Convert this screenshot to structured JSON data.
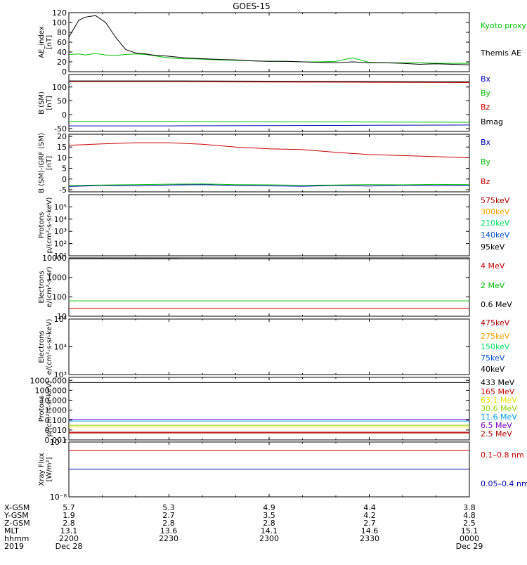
{
  "title": "GOES-15",
  "colors": {
    "black": "#000000",
    "green": "#00c000",
    "lightgreen": "#00e060",
    "blue": "#0000b4",
    "red": "#c80000",
    "darkred": "#aa0000",
    "orange": "#f0a000",
    "yellow": "#e6e600",
    "cyan": "#00a0e6",
    "purple": "#7800c8",
    "bluelight": "#0050d0",
    "olive": "#90d000"
  },
  "chart_data": [
    {
      "type": "line",
      "id": "ae",
      "ylabel": [
        "AE_index",
        "[nT]"
      ],
      "yscale": "linear",
      "ylim": [
        0,
        120
      ],
      "yticks": [
        0,
        20,
        40,
        60,
        80,
        100,
        120
      ],
      "x": [
        0,
        3,
        5,
        8,
        11,
        14,
        17,
        20,
        23,
        26,
        29,
        32,
        35,
        38,
        41,
        45,
        50,
        55,
        60,
        65,
        70,
        75,
        80,
        85,
        90,
        95,
        100,
        105,
        110,
        115,
        120
      ],
      "series": [
        {
          "name": "Kyoto proxy AE",
          "color": "green",
          "values": [
            35,
            36,
            34,
            37,
            34,
            33,
            35,
            36,
            35,
            32,
            29,
            27,
            26,
            26,
            25,
            24,
            23,
            22,
            21,
            21,
            20,
            20,
            21,
            28,
            19,
            18,
            18,
            18,
            17,
            17,
            17
          ]
        },
        {
          "name": "Themis AE",
          "color": "black",
          "values": [
            70,
            105,
            111,
            114,
            100,
            70,
            45,
            38,
            36,
            33,
            32,
            30,
            28,
            27,
            26,
            25,
            24,
            22,
            21,
            21,
            20,
            19,
            18,
            20,
            18,
            18,
            17,
            15,
            16,
            15,
            14
          ]
        }
      ]
    },
    {
      "type": "line",
      "id": "bsm",
      "ylabel": [
        "B (SM)",
        "[nT]"
      ],
      "yscale": "linear",
      "ylim": [
        -60,
        145
      ],
      "yticks": [
        -50,
        0,
        50,
        100
      ],
      "x": [
        0,
        30,
        60,
        90,
        120
      ],
      "series": [
        {
          "name": "Bx",
          "color": "blue",
          "values": [
            -40,
            -40,
            -39,
            -38,
            -37
          ]
        },
        {
          "name": "By",
          "color": "green",
          "values": [
            -24,
            -24,
            -25,
            -26,
            -27
          ]
        },
        {
          "name": "Bz",
          "color": "red",
          "values": [
            119,
            119,
            118,
            117,
            116
          ]
        },
        {
          "name": "Bmag",
          "color": "black",
          "values": [
            122,
            122,
            121,
            120,
            119
          ]
        }
      ]
    },
    {
      "type": "line",
      "id": "bigrf",
      "ylabel": [
        "B (SM)-IGRF (SM)",
        "[nT]"
      ],
      "yscale": "linear",
      "ylim": [
        -6,
        21
      ],
      "yticks": [
        -5,
        0,
        5,
        10,
        15,
        20
      ],
      "x": [
        0,
        10,
        20,
        30,
        40,
        50,
        60,
        70,
        80,
        90,
        100,
        110,
        120
      ],
      "series": [
        {
          "name": "Bx",
          "color": "blue",
          "values": [
            -3.5,
            -3.0,
            -3.2,
            -2.8,
            -2.6,
            -3.0,
            -3.2,
            -3.4,
            -3.0,
            -3.3,
            -2.9,
            -3.1,
            -3.0
          ]
        },
        {
          "name": "By",
          "color": "green",
          "values": [
            -3.0,
            -2.8,
            -2.6,
            -2.4,
            -2.3,
            -2.6,
            -2.7,
            -2.9,
            -2.8,
            -2.6,
            -2.7,
            -2.5,
            -2.6
          ]
        },
        {
          "name": "Bz",
          "color": "red",
          "values": [
            15.8,
            16.5,
            17.0,
            17.0,
            16.3,
            15.0,
            14.2,
            13.8,
            12.5,
            11.5,
            11.0,
            10.5,
            10.0
          ]
        }
      ]
    },
    {
      "type": "line",
      "id": "protons1",
      "ylabel": [
        "Protons",
        "p/(cm²-s-sr-keV)"
      ],
      "yscale": "log",
      "ylim": [
        10,
        1000000
      ],
      "ytick_labels": [
        "10⁰",
        "10¹",
        "10²",
        "10³",
        "10⁴",
        "10⁵"
      ],
      "yticks": [
        1,
        10,
        100,
        1000,
        10000,
        100000
      ],
      "x": [],
      "series": [
        {
          "name": "575keV",
          "color": "darkred"
        },
        {
          "name": "300keV",
          "color": "orange"
        },
        {
          "name": "210keV",
          "color": "lightgreen"
        },
        {
          "name": "140keV",
          "color": "bluelight"
        },
        {
          "name": "95keV",
          "color": "black"
        }
      ]
    },
    {
      "type": "line",
      "id": "electrons1",
      "ylabel": [
        "Electrons",
        "e/(cm²-s-sr)"
      ],
      "yscale": "log",
      "ylim": [
        10,
        10000
      ],
      "yticks": [
        10,
        100,
        1000,
        10000
      ],
      "ytick_labels": [
        "10",
        "100",
        "1000",
        "10000"
      ],
      "x": [
        0,
        120
      ],
      "series": [
        {
          "name": "4 MeV",
          "color": "red",
          "values": [
            25,
            25
          ]
        },
        {
          "name": "2 MeV",
          "color": "green",
          "values": [
            62,
            62
          ]
        },
        {
          "name": "0.6 MeV",
          "color": "black",
          "values": [
            9000,
            8900
          ]
        }
      ]
    },
    {
      "type": "line",
      "id": "electrons2",
      "ylabel": [
        "Electrons",
        "e/(cm²-s-sr-keV)"
      ],
      "yscale": "log",
      "ylim": [
        1000,
        100000
      ],
      "yticks": [
        1000,
        10000,
        100000
      ],
      "ytick_labels": [
        "10³",
        "10⁴",
        "10⁵"
      ],
      "x": [],
      "series": [
        {
          "name": "475keV",
          "color": "darkred"
        },
        {
          "name": "275keV",
          "color": "orange"
        },
        {
          "name": "150keV",
          "color": "lightgreen"
        },
        {
          "name": "75keV",
          "color": "bluelight"
        },
        {
          "name": "40keV",
          "color": "black"
        }
      ]
    },
    {
      "type": "line",
      "id": "protons2",
      "ylabel": [
        "Protons",
        "p/(cm²-s-sr-keV)"
      ],
      "yscale": "log",
      "ylim": [
        0.001,
        2000
      ],
      "yticks": [
        0.001,
        0.01,
        0.1,
        1,
        10,
        100,
        1000
      ],
      "ytick_labels": [
        "0.001",
        "0.010",
        "0.100",
        "1.000",
        "10.000",
        "100.000",
        "1000.000"
      ],
      "x": [
        0,
        120
      ],
      "series": [
        {
          "name": "433 MeV",
          "color": "black",
          "values": [
            600,
            600
          ]
        },
        {
          "name": "165 MeV",
          "color": "red",
          "values": [
            0.005,
            0.005
          ]
        },
        {
          "name": "63.1 MeV",
          "color": "yellow",
          "values": [
            0.02,
            0.02
          ]
        },
        {
          "name": "30.6 MeV",
          "color": "olive",
          "values": [
            0.03,
            0.03
          ]
        },
        {
          "name": "11.6 MeV",
          "color": "cyan",
          "values": [
            0.08,
            0.08
          ]
        },
        {
          "name": "6.5 MeV",
          "color": "purple",
          "values": [
            0.12,
            0.12
          ]
        },
        {
          "name": "2.5 MeV",
          "color": "darkred",
          "values": [
            0.006,
            0.006
          ]
        }
      ]
    },
    {
      "type": "line",
      "id": "xray",
      "ylabel": [
        "Xray Flux",
        "[W/m²]"
      ],
      "yscale": "log",
      "ylim": [
        1e-08,
        1e-07
      ],
      "yticks": [
        1e-08,
        1e-07
      ],
      "ytick_labels": [
        "10⁻⁸",
        "10⁻⁷"
      ],
      "x": [
        0,
        120
      ],
      "series": [
        {
          "name": "0.1–0.8 nm",
          "color": "red",
          "values": [
            7e-08,
            7e-08
          ]
        },
        {
          "name": "0.05–0.4 nm",
          "color": "blue",
          "values": [
            3.2e-08,
            3.2e-08
          ]
        }
      ]
    }
  ],
  "footer": {
    "row_labels": [
      "X-GSM",
      "Y-GSM",
      "Z-GSM",
      "MLT",
      "hhmm",
      "2019"
    ],
    "columns": [
      [
        "5.7",
        "1.9",
        "2.8",
        "13.1",
        "2200",
        "Dec 28"
      ],
      [
        "5.3",
        "2.7",
        "2.8",
        "13.6",
        "2230",
        ""
      ],
      [
        "4.9",
        "3.5",
        "2.8",
        "14.1",
        "2300",
        ""
      ],
      [
        "4.4",
        "4.2",
        "2.7",
        "14.6",
        "2330",
        ""
      ],
      [
        "3.8",
        "4.8",
        "2.5",
        "15.1",
        "0000",
        "Dec 29"
      ]
    ]
  }
}
